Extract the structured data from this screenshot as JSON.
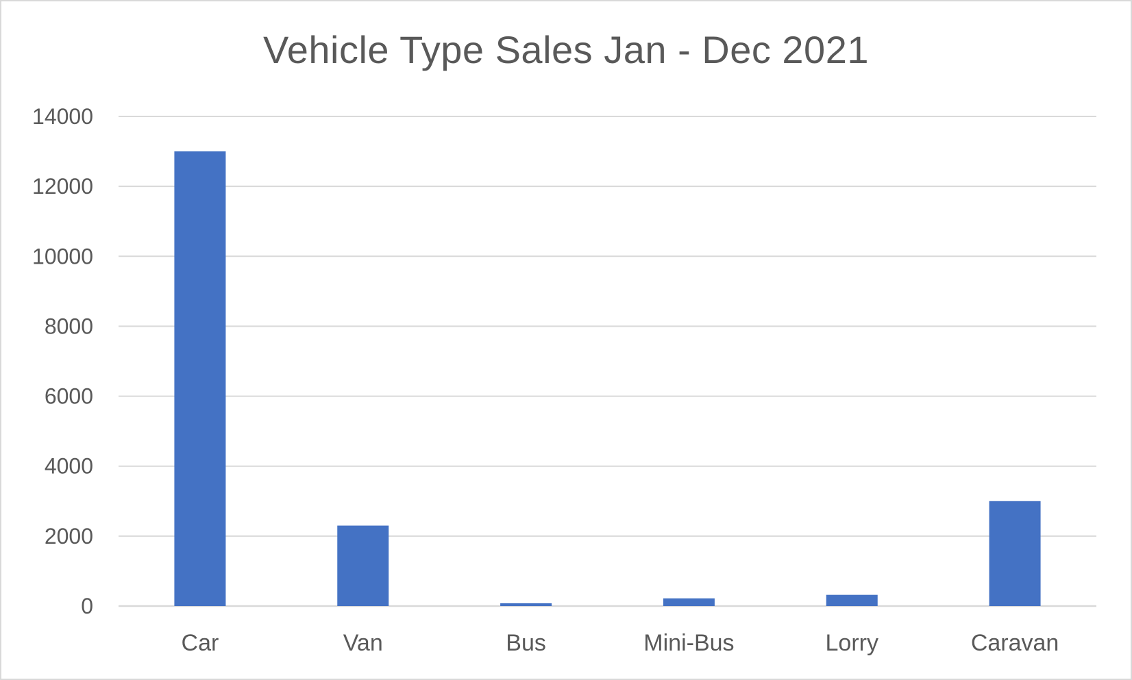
{
  "chart_data": {
    "type": "bar",
    "title": "Vehicle Type Sales Jan - Dec 2021",
    "xlabel": "",
    "ylabel": "",
    "categories": [
      "Car",
      "Van",
      "Bus",
      "Mini-Bus",
      "Lorry",
      "Caravan"
    ],
    "values": [
      13000,
      2300,
      80,
      220,
      320,
      3000
    ],
    "ylim": [
      0,
      14000
    ],
    "yticks": [
      0,
      2000,
      4000,
      6000,
      8000,
      10000,
      12000,
      14000
    ],
    "grid": true,
    "legend": "none",
    "bar_color": "#4472c4",
    "gridline_color": "#d9d9d9",
    "text_color": "#595959"
  }
}
